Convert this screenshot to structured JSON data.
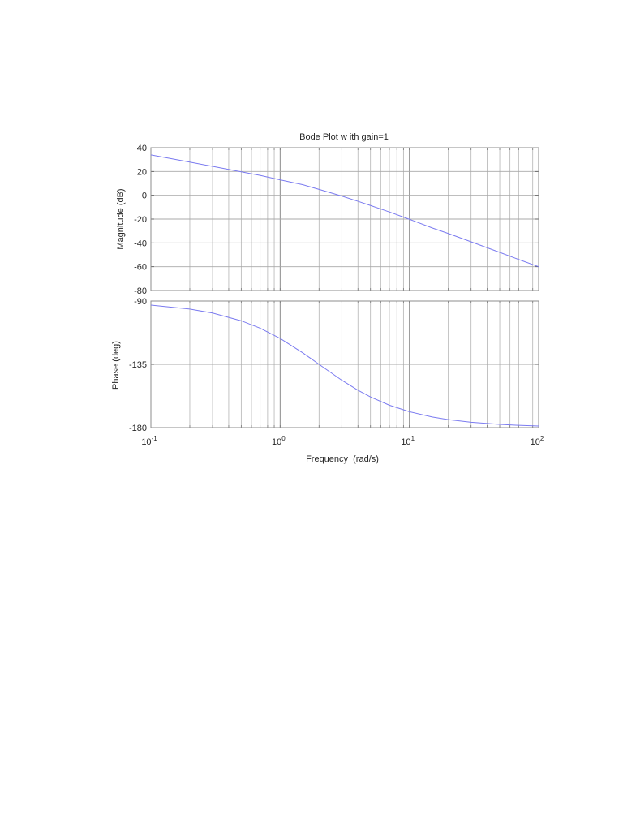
{
  "chart_data": [
    {
      "type": "line",
      "title": "Bode Plot w ith gain=1",
      "xlabel": "Frequency  (rad/s)",
      "ylabel": "Magnitude (dB)",
      "xscale": "log",
      "xlim": [
        0.1,
        100
      ],
      "ylim": [
        -80,
        40
      ],
      "yticks": [
        40,
        20,
        0,
        -20,
        -40,
        -60,
        -80
      ],
      "ytick_labels": [
        "40",
        "20",
        "0",
        "-20",
        "-40",
        "-60",
        "-80"
      ],
      "grid": true,
      "series": [
        {
          "name": "Magnitude",
          "color": "#7b7bf0",
          "x": [
            0.1,
            0.2,
            0.3,
            0.5,
            0.7,
            1,
            1.5,
            2,
            3,
            4,
            5,
            7,
            10,
            15,
            20,
            30,
            50,
            70,
            100
          ],
          "values": [
            33.97,
            27.92,
            24.3,
            19.74,
            16.7,
            13.01,
            8.9,
            4.95,
            -0.68,
            -5.05,
            -8.6,
            -14.0,
            -20.17,
            -27.4,
            -32.08,
            -39.1,
            -47.97,
            -53.9,
            -60.0
          ]
        }
      ]
    },
    {
      "type": "line",
      "title": "",
      "xlabel": "Frequency  (rad/s)",
      "ylabel": "Phase (deg)",
      "xscale": "log",
      "xlim": [
        0.1,
        100
      ],
      "ylim": [
        -180,
        -90
      ],
      "yticks": [
        -90,
        -135,
        -180
      ],
      "ytick_labels": [
        "-90",
        "-135",
        "-180"
      ],
      "xticks": [
        0.1,
        1,
        10,
        100
      ],
      "xtick_labels": [
        "10^-1",
        "10^0",
        "10^1",
        "10^2"
      ],
      "grid": true,
      "series": [
        {
          "name": "Phase",
          "color": "#7b7bf0",
          "x": [
            0.1,
            0.2,
            0.3,
            0.5,
            0.7,
            1,
            1.5,
            2,
            3,
            4,
            5,
            7,
            10,
            15,
            20,
            30,
            50,
            70,
            100
          ],
          "values": [
            -92.86,
            -95.71,
            -98.53,
            -104.04,
            -109.29,
            -116.57,
            -126.87,
            -135.0,
            -146.31,
            -153.43,
            -158.2,
            -164.05,
            -168.69,
            -172.41,
            -174.29,
            -176.19,
            -177.71,
            -178.36,
            -178.85
          ]
        }
      ]
    }
  ],
  "figure": {
    "title": "Bode Plot w ith gain=1",
    "xlabel": "Frequency  (rad/s)",
    "magnitude_ylabel": "Magnitude (dB)",
    "phase_ylabel": "Phase (deg)",
    "x_tick_base": "10",
    "x_tick_exponents": [
      "-1",
      "0",
      "1",
      "2"
    ],
    "colors": {
      "curve": "#7b7bf0",
      "grid": "#9a9a9a",
      "axes": "#8c8c8c",
      "text": "#262626"
    }
  }
}
